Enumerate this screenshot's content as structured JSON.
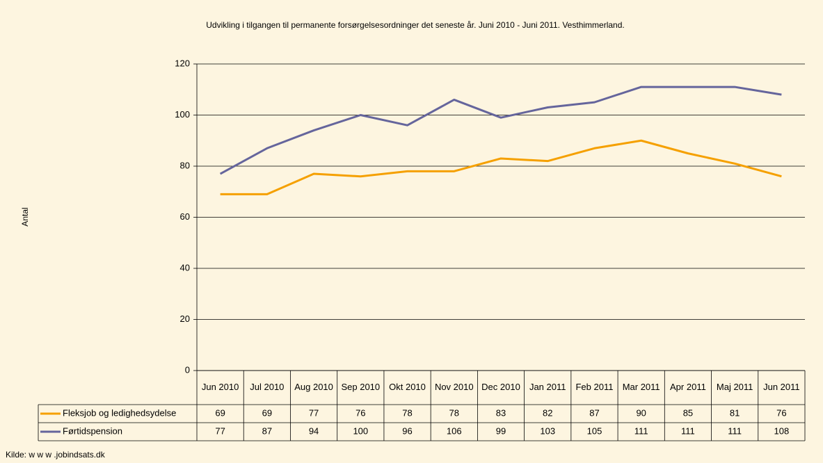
{
  "chart_data": {
    "type": "line",
    "title": "Udvikling i tilgangen til permanente forsørgelsesordninger det seneste år. Juni 2010 - Juni 2011. Vesthimmerland.",
    "ylabel": "Antal",
    "source": "Kilde: w w w .jobindsats.dk",
    "categories": [
      "Jun 2010",
      "Jul 2010",
      "Aug 2010",
      "Sep 2010",
      "Okt 2010",
      "Nov 2010",
      "Dec 2010",
      "Jan 2011",
      "Feb 2011",
      "Mar 2011",
      "Apr 2011",
      "Maj 2011",
      "Jun 2011"
    ],
    "series": [
      {
        "name": "Fleksjob og ledighedsydelse",
        "color": "#f5a000",
        "values": [
          69,
          69,
          77,
          76,
          78,
          78,
          83,
          82,
          87,
          90,
          85,
          81,
          76
        ]
      },
      {
        "name": "Førtidspension",
        "color": "#65659c",
        "values": [
          77,
          87,
          94,
          100,
          96,
          106,
          99,
          103,
          105,
          111,
          111,
          111,
          108
        ]
      }
    ],
    "ylim": [
      0,
      120
    ],
    "yticks": [
      0,
      20,
      40,
      60,
      80,
      100,
      120
    ],
    "grid": true
  }
}
